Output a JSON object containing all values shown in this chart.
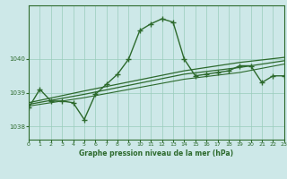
{
  "title": "Graphe pression niveau de la mer (hPa)",
  "bg_color": "#cde8e8",
  "grid_color": "#99ccbb",
  "line_color": "#2d6a2d",
  "x_min": 0,
  "x_max": 23,
  "y_min": 1037.6,
  "y_max": 1041.6,
  "yticks": [
    1038,
    1039,
    1040
  ],
  "xticks": [
    0,
    1,
    2,
    3,
    4,
    5,
    6,
    7,
    8,
    9,
    10,
    11,
    12,
    13,
    14,
    15,
    16,
    17,
    18,
    19,
    20,
    21,
    22,
    23
  ],
  "series1_x": [
    0,
    1,
    2,
    3,
    4,
    5,
    6,
    7,
    8,
    9,
    10,
    11,
    12,
    13,
    14,
    15,
    16,
    17,
    18,
    19,
    20,
    21,
    22,
    23
  ],
  "series1_y": [
    1038.55,
    1039.1,
    1038.75,
    1038.75,
    1038.7,
    1038.2,
    1038.95,
    1039.25,
    1039.55,
    1040.0,
    1040.85,
    1041.05,
    1041.2,
    1041.1,
    1040.0,
    1039.5,
    1039.55,
    1039.6,
    1039.65,
    1039.8,
    1039.8,
    1039.3,
    1039.5,
    1039.5
  ],
  "series2_x": [
    0,
    5,
    14,
    19,
    23
  ],
  "series2_y": [
    1038.7,
    1039.05,
    1039.65,
    1039.9,
    1040.05
  ],
  "series3_x": [
    0,
    5,
    14,
    19,
    23
  ],
  "series3_y": [
    1038.65,
    1038.95,
    1039.55,
    1039.75,
    1039.95
  ],
  "series4_x": [
    0,
    5,
    14,
    19,
    23
  ],
  "series4_y": [
    1038.6,
    1038.85,
    1039.4,
    1039.6,
    1039.85
  ]
}
